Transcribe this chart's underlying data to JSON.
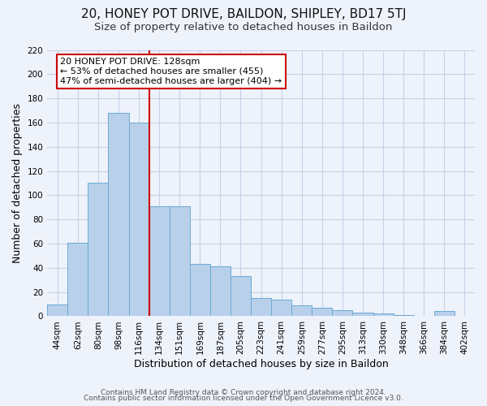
{
  "title": "20, HONEY POT DRIVE, BAILDON, SHIPLEY, BD17 5TJ",
  "subtitle": "Size of property relative to detached houses in Baildon",
  "xlabel": "Distribution of detached houses by size in Baildon",
  "ylabel": "Number of detached properties",
  "categories": [
    "44sqm",
    "62sqm",
    "80sqm",
    "98sqm",
    "116sqm",
    "134sqm",
    "151sqm",
    "169sqm",
    "187sqm",
    "205sqm",
    "223sqm",
    "241sqm",
    "259sqm",
    "277sqm",
    "295sqm",
    "313sqm",
    "330sqm",
    "348sqm",
    "366sqm",
    "384sqm",
    "402sqm"
  ],
  "values": [
    10,
    61,
    110,
    168,
    160,
    91,
    91,
    43,
    41,
    33,
    15,
    14,
    9,
    7,
    5,
    3,
    2,
    1,
    0,
    4,
    0
  ],
  "bar_color": "#b8d0ea",
  "bar_edge_color": "#6aaad4",
  "bg_color": "#eef2fb",
  "grid_color": "#c8d0e8",
  "vline_x_idx": 4,
  "vline_color": "#cc0000",
  "annotation_title": "20 HONEY POT DRIVE: 128sqm",
  "annotation_line1": "← 53% of detached houses are smaller (455)",
  "annotation_line2": "47% of semi-detached houses are larger (404) →",
  "annotation_box_color": "#ffffff",
  "annotation_box_edge": "#cc0000",
  "footer1": "Contains HM Land Registry data © Crown copyright and database right 2024.",
  "footer2": "Contains public sector information licensed under the Open Government Licence v3.0.",
  "ylim": [
    0,
    220
  ],
  "yticks": [
    0,
    20,
    40,
    60,
    80,
    100,
    120,
    140,
    160,
    180,
    200,
    220
  ],
  "title_fontsize": 11,
  "subtitle_fontsize": 9.5,
  "axis_label_fontsize": 9,
  "tick_fontsize": 7.5,
  "annotation_fontsize": 8,
  "footer_fontsize": 6.5
}
